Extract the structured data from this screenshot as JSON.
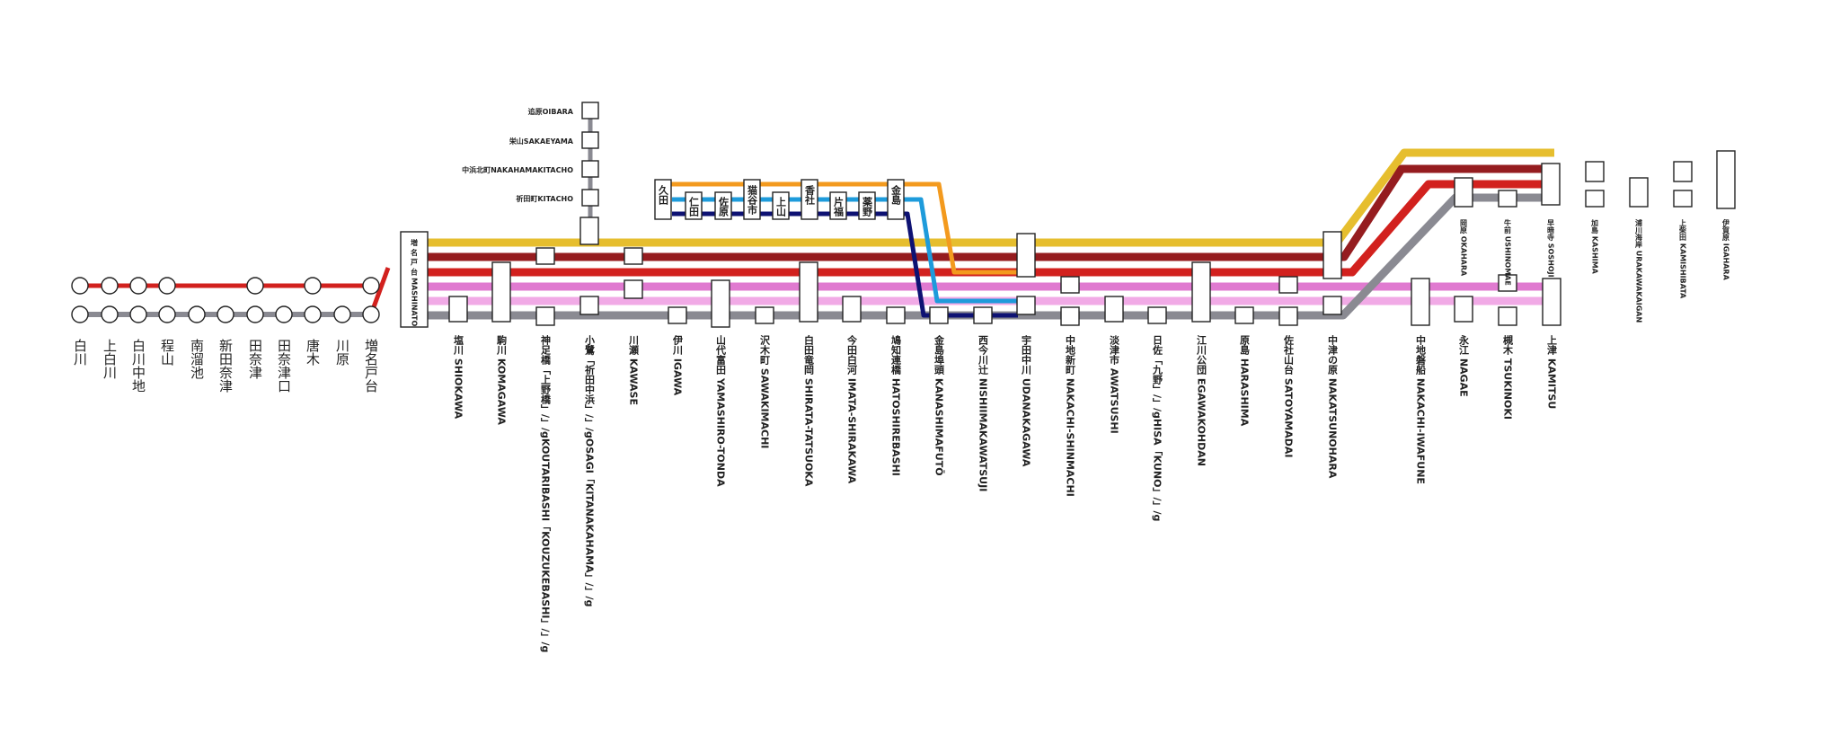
{
  "colors": {
    "yellow": "#E6BE2E",
    "darkred": "#951C1F",
    "red": "#D2211E",
    "pink": "#E07AD0",
    "lightpink": "#F1AAE6",
    "gray": "#8A8A92",
    "orange": "#F39A1E",
    "skyblue": "#1E9BDB",
    "navy": "#0E1273"
  },
  "left_line_stations": [
    "白川",
    "上白川",
    "白川中地",
    "程山",
    "南溜池",
    "新田奈津",
    "田奈津",
    "田奈津口",
    "唐木",
    "川原",
    "増名戸台"
  ],
  "terminal_label": "増 名 戸 台 MASHINATO",
  "branch_north": [
    "追原OIBARA",
    "栄山SAKAEYAMA",
    "中浜北町NAKAHAMAKITACHO",
    "祈田町KITACHO"
  ],
  "branch_loop": [
    "久田",
    "仁田",
    "佐原",
    "猫谷市",
    "上山",
    "香社",
    "片福",
    "薬野",
    "金島"
  ],
  "main_stations": [
    "塩川 SHIOKAWA",
    "駒川 KOMAGAWA",
    "神足橋「上野橋」/」/gKOUTARIBASHI「KOUZUKEBASHI」/」/g",
    "小鷺「祈田中浜」/」/gOSAGI「KITANAKAHAMA」/」/g",
    "川瀬 KAWASE",
    "伊川 IGAWA",
    "山代富田 YAMASHIRO-TONDA",
    "沢木町 SAWAKIMACHI",
    "白田竜岡 SHIRATA-TATSUOKA",
    "今田白河 IMATA-SHIRAKAWA",
    "鳩知連橋 HATOSHIREBASHI",
    "金島埠頭 KANASHIMAFUTŌ",
    "西今川辻 NISHIIMAKAWATSUJI",
    "宇田中川 UDANAKAGAWA",
    "中地新町 NAKACHI-SHINMACHI",
    "淡津市 AWATSUSHI",
    "日佐「九野」/」/gHISA「KUNO」/」/g",
    "江川公団 EGAWAKOHDAN",
    "原島 HARASHIMA",
    "佐社山台 SATOYAMADAI",
    "中津の原 NAKATSUNOHARA",
    "中地磐船 NAKACHI-IWAFUNE",
    "永江 NAGAE",
    "槻木 TSUKINOKI",
    "上津 KAMITSU"
  ],
  "upper_stations": [
    "岡原 OKAHARA",
    "牛前 USHINOMAE",
    "早暗寺 SOSHOJI",
    "加島 KASHIMA",
    "浦川海岸 URAKAWAKAIGAN",
    "上柴田 KAMISHIBATA",
    "伊賀原 IGAHARA"
  ]
}
